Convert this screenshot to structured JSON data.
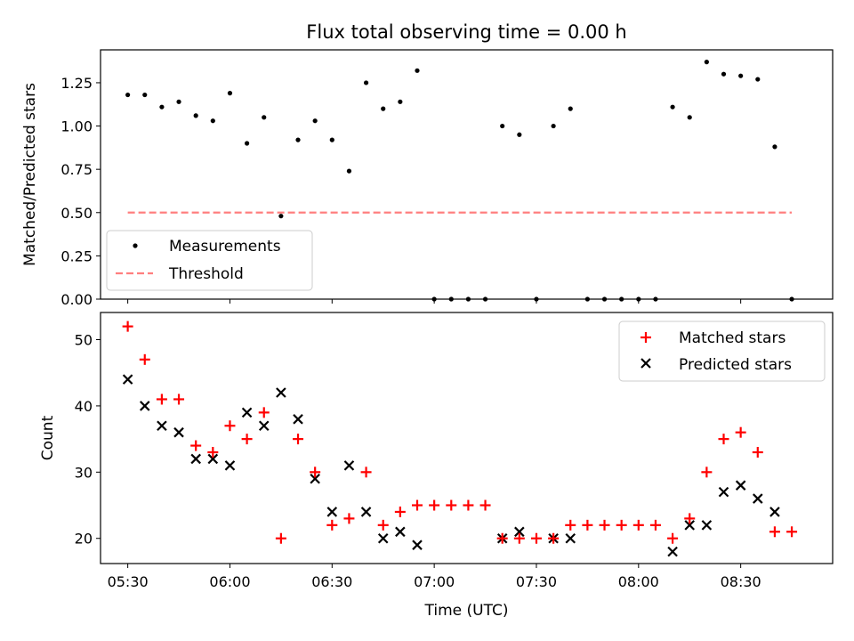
{
  "figure": {
    "title": "Flux total observing time = 0.00 h",
    "xlabel": "Time (UTC)"
  },
  "chart_data": [
    {
      "type": "scatter",
      "ylabel": "Matched/Predicted stars",
      "xlim": [
        "05:22",
        "08:57"
      ],
      "ylim": [
        0,
        1.44
      ],
      "y_ticks": [
        "0.00",
        "0.25",
        "0.50",
        "0.75",
        "1.00",
        "1.25"
      ],
      "legend": {
        "position": "lower-left",
        "entries": [
          "Measurements",
          "Threshold"
        ]
      },
      "series": [
        {
          "name": "Measurements",
          "marker": "dot",
          "color": "#000000",
          "x": [
            "05:30",
            "05:35",
            "05:40",
            "05:45",
            "05:50",
            "05:55",
            "06:00",
            "06:05",
            "06:10",
            "06:15",
            "06:20",
            "06:25",
            "06:30",
            "06:35",
            "06:40",
            "06:45",
            "06:50",
            "06:55",
            "07:00",
            "07:05",
            "07:10",
            "07:15",
            "07:20",
            "07:25",
            "07:30",
            "07:35",
            "07:40",
            "07:45",
            "07:50",
            "07:55",
            "08:00",
            "08:05",
            "08:10",
            "08:15",
            "08:20",
            "08:25",
            "08:30",
            "08:35",
            "08:40",
            "08:45"
          ],
          "y": [
            1.18,
            1.18,
            1.11,
            1.14,
            1.06,
            1.03,
            1.19,
            0.9,
            1.05,
            0.48,
            0.92,
            1.03,
            0.92,
            0.74,
            1.25,
            1.1,
            1.14,
            1.32,
            0,
            0,
            0,
            0,
            1.0,
            0.95,
            0,
            1.0,
            1.1,
            0,
            0,
            0,
            0,
            0,
            1.11,
            1.05,
            1.37,
            1.3,
            1.29,
            1.27,
            0.88,
            0
          ]
        },
        {
          "name": "Threshold",
          "line_style": "dashed",
          "color": "#ff7f7f",
          "x": [
            "05:30",
            "08:45"
          ],
          "y": [
            0.5,
            0.5
          ]
        }
      ]
    },
    {
      "type": "scatter",
      "ylabel": "Count",
      "xlim": [
        "05:22",
        "08:57"
      ],
      "ylim": [
        16.2,
        54.1
      ],
      "y_ticks": [
        "20",
        "30",
        "40",
        "50"
      ],
      "x_ticks": [
        "05:30",
        "06:00",
        "06:30",
        "07:00",
        "07:30",
        "08:00",
        "08:30"
      ],
      "legend": {
        "position": "upper-right",
        "entries": [
          "Matched stars",
          "Predicted stars"
        ]
      },
      "series": [
        {
          "name": "Matched stars",
          "marker": "plus",
          "color": "#ff0000",
          "x": [
            "05:30",
            "05:35",
            "05:40",
            "05:45",
            "05:50",
            "05:55",
            "06:00",
            "06:05",
            "06:10",
            "06:15",
            "06:20",
            "06:25",
            "06:30",
            "06:35",
            "06:40",
            "06:45",
            "06:50",
            "06:55",
            "07:00",
            "07:05",
            "07:10",
            "07:15",
            "07:20",
            "07:25",
            "07:30",
            "07:35",
            "07:40",
            "07:45",
            "07:50",
            "07:55",
            "08:00",
            "08:05",
            "08:10",
            "08:15",
            "08:20",
            "08:25",
            "08:30",
            "08:35",
            "08:40",
            "08:45"
          ],
          "y": [
            52,
            47,
            41,
            41,
            34,
            33,
            37,
            35,
            39,
            20,
            35,
            30,
            22,
            23,
            30,
            22,
            24,
            25,
            25,
            25,
            25,
            25,
            20,
            20,
            20,
            20,
            22,
            22,
            22,
            22,
            22,
            22,
            20,
            23,
            30,
            35,
            36,
            33,
            21,
            21
          ]
        },
        {
          "name": "Predicted stars",
          "marker": "x",
          "color": "#000000",
          "x": [
            "05:30",
            "05:35",
            "05:40",
            "05:45",
            "05:50",
            "05:55",
            "06:00",
            "06:05",
            "06:10",
            "06:15",
            "06:20",
            "06:25",
            "06:30",
            "06:35",
            "06:40",
            "06:45",
            "06:50",
            "06:55",
            "07:20",
            "07:25",
            "07:35",
            "07:40",
            "08:10",
            "08:15",
            "08:20",
            "08:25",
            "08:30",
            "08:35",
            "08:40"
          ],
          "y": [
            44,
            40,
            37,
            36,
            32,
            32,
            31,
            39,
            37,
            42,
            38,
            29,
            24,
            31,
            24,
            20,
            21,
            19,
            20,
            21,
            20,
            20,
            18,
            22,
            22,
            27,
            28,
            26,
            24
          ]
        }
      ]
    }
  ]
}
